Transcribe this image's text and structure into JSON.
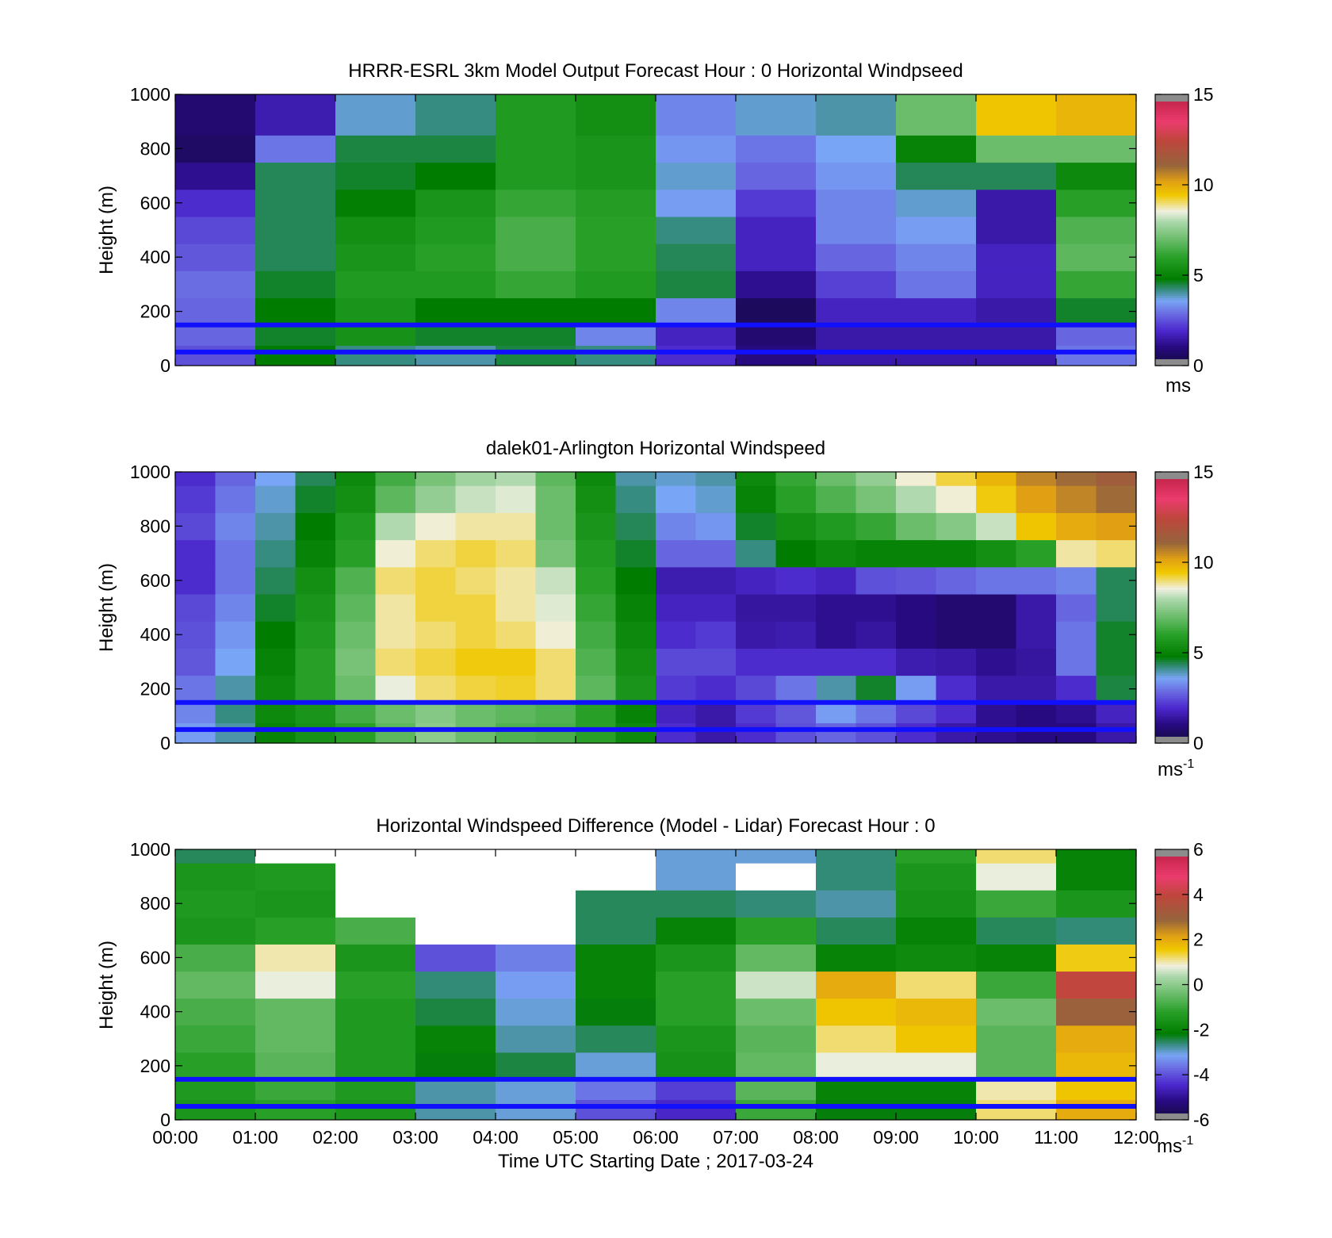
{
  "chart_data": [
    {
      "type": "heatmap",
      "title": "HRRR-ESRL 3km Model Output   Forecast Hour : 0 Horizontal Windpseed",
      "ylabel": "Height (m)",
      "ylim": [
        0,
        1000
      ],
      "y_ticks": [
        "0",
        "200",
        "400",
        "600",
        "800",
        "1000"
      ],
      "x_ticks": [],
      "xlim_hours": [
        0,
        12
      ],
      "colorbar": {
        "min": 0,
        "max": 15,
        "ticks": [
          "0",
          "5",
          "10",
          "15"
        ],
        "unit": "ms",
        "unit_sup": ""
      },
      "reference_heights": [
        150,
        50
      ],
      "time_hours": [
        0,
        1,
        2,
        3,
        4,
        5,
        6,
        7,
        8,
        9,
        10,
        11
      ],
      "heights_m": [
        50,
        100,
        200,
        300,
        400,
        500,
        600,
        700,
        800,
        900,
        1000
      ],
      "values": [
        [
          2.5,
          4.8,
          4.2,
          4.0,
          4.5,
          4.2,
          2.0,
          1.0,
          1.5,
          1.5,
          1.5,
          3.0
        ],
        [
          2.8,
          4.6,
          5.5,
          4.6,
          4.6,
          3.2,
          1.8,
          0.8,
          1.5,
          1.5,
          1.5,
          2.8
        ],
        [
          2.8,
          4.8,
          5.6,
          4.8,
          4.8,
          4.8,
          3.2,
          0.5,
          1.8,
          1.8,
          1.5,
          4.6
        ],
        [
          2.9,
          4.6,
          5.8,
          5.8,
          6.2,
          5.8,
          4.5,
          1.2,
          2.3,
          3.0,
          1.8,
          6.2
        ],
        [
          2.6,
          4.4,
          5.6,
          6.0,
          6.5,
          6.0,
          4.4,
          1.8,
          2.8,
          3.2,
          1.8,
          6.8
        ],
        [
          2.4,
          4.4,
          5.4,
          5.8,
          6.5,
          6.0,
          4.2,
          1.8,
          3.2,
          3.5,
          1.5,
          6.6
        ],
        [
          2.0,
          4.4,
          4.9,
          5.6,
          6.2,
          5.9,
          3.5,
          2.2,
          3.2,
          3.8,
          1.5,
          6.0
        ],
        [
          1.2,
          4.4,
          4.6,
          4.8,
          5.8,
          5.6,
          3.8,
          2.8,
          3.4,
          4.4,
          4.4,
          5.2
        ],
        [
          0.6,
          3.0,
          4.5,
          4.5,
          5.8,
          5.6,
          3.4,
          3.0,
          3.6,
          5.0,
          7.0,
          7.0
        ],
        [
          0.8,
          1.6,
          3.8,
          4.2,
          5.8,
          5.4,
          3.2,
          3.8,
          4.0,
          7.0,
          9.5,
          9.8
        ],
        [
          0.8,
          1.6,
          3.8,
          4.2,
          5.8,
          5.4,
          3.2,
          3.8,
          4.0,
          7.0,
          9.5,
          9.8
        ]
      ]
    },
    {
      "type": "heatmap",
      "title": "dalek01-Arlington  Horizontal Windspeed",
      "ylabel": "Height (m)",
      "ylim": [
        0,
        1000
      ],
      "y_ticks": [
        "0",
        "200",
        "400",
        "600",
        "800",
        "1000"
      ],
      "x_ticks": [],
      "xlim_hours": [
        0,
        12
      ],
      "colorbar": {
        "min": 0,
        "max": 15,
        "ticks": [
          "0",
          "5",
          "10",
          "15"
        ],
        "unit": "ms",
        "unit_sup": "-1"
      },
      "reference_heights": [
        150,
        50
      ],
      "time_hours": [
        0,
        0.5,
        1,
        1.5,
        2,
        2.5,
        3,
        3.5,
        4,
        4.5,
        5,
        5.5,
        6,
        6.5,
        7,
        7.5,
        8,
        8.5,
        9,
        9.5,
        10,
        10.5,
        11,
        11.5
      ],
      "heights_m": [
        50,
        100,
        200,
        300,
        400,
        500,
        600,
        700,
        800,
        900,
        1000
      ],
      "values": [
        [
          3.5,
          4.0,
          5.0,
          5.5,
          6.0,
          6.8,
          7.5,
          7.0,
          6.6,
          6.5,
          6.0,
          5.2,
          2.0,
          1.5,
          2.0,
          2.5,
          2.8,
          2.5,
          2.0,
          1.5,
          1.2,
          1.0,
          1.0,
          1.5
        ],
        [
          3.2,
          4.2,
          5.2,
          5.6,
          6.4,
          7.0,
          7.4,
          7.0,
          6.8,
          6.6,
          6.0,
          5.0,
          1.8,
          1.5,
          2.2,
          2.6,
          3.5,
          3.0,
          2.4,
          2.0,
          1.2,
          1.0,
          1.2,
          1.8
        ],
        [
          3.0,
          4.0,
          5.2,
          6.0,
          7.0,
          8.5,
          9.0,
          9.2,
          9.3,
          9.0,
          6.8,
          5.6,
          2.2,
          2.0,
          2.4,
          3.0,
          4.0,
          4.6,
          3.5,
          2.0,
          1.5,
          1.5,
          2.0,
          4.5
        ],
        [
          2.6,
          3.6,
          5.0,
          6.0,
          7.2,
          9.0,
          9.2,
          9.4,
          9.4,
          9.0,
          6.6,
          5.4,
          2.4,
          2.4,
          2.0,
          2.0,
          2.0,
          2.0,
          1.6,
          1.5,
          1.2,
          1.4,
          3.0,
          4.6
        ],
        [
          2.5,
          3.4,
          4.8,
          5.8,
          7.0,
          8.8,
          9.0,
          9.2,
          9.0,
          8.6,
          6.4,
          5.2,
          2.0,
          2.2,
          1.5,
          1.6,
          1.2,
          1.4,
          1.0,
          0.8,
          0.8,
          1.5,
          3.0,
          4.6
        ],
        [
          2.4,
          3.2,
          4.6,
          5.6,
          6.8,
          8.8,
          9.2,
          9.2,
          8.8,
          8.4,
          6.2,
          5.0,
          1.8,
          1.8,
          1.4,
          1.4,
          1.2,
          1.2,
          1.0,
          0.8,
          0.8,
          1.5,
          2.8,
          4.4
        ],
        [
          2.0,
          3.0,
          4.4,
          5.4,
          6.6,
          9.0,
          9.2,
          9.0,
          8.8,
          8.2,
          6.0,
          4.8,
          1.6,
          1.6,
          1.8,
          2.0,
          1.8,
          2.5,
          2.6,
          2.8,
          3.0,
          3.0,
          3.2,
          4.4
        ],
        [
          2.0,
          3.0,
          4.2,
          5.0,
          6.0,
          8.6,
          9.0,
          9.2,
          9.0,
          7.2,
          5.8,
          4.6,
          2.8,
          2.8,
          4.2,
          4.8,
          5.2,
          5.0,
          5.0,
          5.0,
          5.4,
          6.0,
          8.8,
          9.0
        ],
        [
          2.4,
          3.2,
          4.0,
          4.8,
          5.8,
          8.0,
          8.6,
          8.8,
          8.8,
          7.0,
          5.6,
          4.4,
          3.2,
          3.4,
          4.6,
          5.4,
          5.8,
          6.2,
          7.0,
          7.4,
          8.2,
          9.5,
          10.0,
          10.2
        ],
        [
          2.2,
          3.0,
          3.8,
          4.6,
          5.4,
          6.8,
          7.6,
          8.2,
          8.4,
          7.0,
          5.4,
          4.2,
          3.6,
          3.8,
          5.0,
          6.0,
          6.6,
          7.2,
          8.0,
          8.6,
          9.4,
          10.2,
          10.6,
          11.0
        ],
        [
          2.0,
          2.8,
          3.6,
          4.4,
          5.2,
          6.4,
          7.2,
          7.8,
          8.0,
          6.8,
          5.2,
          4.0,
          3.8,
          4.0,
          5.2,
          6.2,
          7.0,
          7.6,
          8.6,
          9.2,
          9.8,
          10.6,
          11.0,
          11.4
        ]
      ]
    },
    {
      "type": "heatmap",
      "title": "Horizontal Windspeed Difference (Model - Lidar) Forecast Hour : 0",
      "xlabel": "Time UTC  Starting Date ; 2017-03-24",
      "ylabel": "Height (m)",
      "ylim": [
        0,
        1000
      ],
      "y_ticks": [
        "0",
        "200",
        "400",
        "600",
        "800",
        "1000"
      ],
      "x_ticks": [
        "00:00",
        "01:00",
        "02:00",
        "03:00",
        "04:00",
        "05:00",
        "06:00",
        "07:00",
        "08:00",
        "09:00",
        "10:00",
        "11:00",
        "12:00"
      ],
      "xlim_hours": [
        0,
        12
      ],
      "colorbar": {
        "min": -6,
        "max": 6,
        "ticks": [
          "-6",
          "-4",
          "-2",
          "0",
          "2",
          "4",
          "6"
        ],
        "unit": "ms",
        "unit_sup": "-1"
      },
      "reference_heights": [
        150,
        50
      ],
      "time_hours": [
        0,
        1,
        2,
        3,
        4,
        5,
        6,
        7,
        8,
        9,
        10,
        11
      ],
      "heights_m": [
        50,
        100,
        200,
        300,
        400,
        500,
        600,
        700,
        800,
        900,
        1000
      ],
      "values": [
        [
          -1.5,
          -1.2,
          -1.5,
          -2.8,
          -3.0,
          -4.0,
          -4.5,
          -1.0,
          -2.2,
          -2.2,
          1.2,
          2.0
        ],
        [
          -1.4,
          -1.0,
          -1.4,
          -2.8,
          -3.0,
          -3.6,
          -4.2,
          -0.6,
          -2.0,
          -2.0,
          1.0,
          1.6
        ],
        [
          -1.2,
          -0.6,
          -1.4,
          -2.2,
          -2.4,
          -3.0,
          -1.6,
          -0.5,
          0.8,
          0.8,
          -0.6,
          1.8
        ],
        [
          -1.0,
          -0.5,
          -1.4,
          -2.0,
          -2.8,
          -2.5,
          -1.5,
          -0.6,
          1.2,
          1.6,
          -0.6,
          2.0
        ],
        [
          -0.8,
          -0.5,
          -1.4,
          -2.4,
          -3.0,
          -2.2,
          -1.2,
          -0.4,
          1.6,
          1.8,
          -0.4,
          3.0
        ],
        [
          -0.5,
          0.8,
          -1.2,
          -2.6,
          -3.2,
          -2.0,
          -1.2,
          0.6,
          2.0,
          1.2,
          -1.0,
          4.0
        ],
        [
          -0.8,
          1.0,
          -1.5,
          -4.0,
          -3.5,
          -2.0,
          -1.5,
          -0.5,
          -2.0,
          -1.8,
          -2.0,
          1.5
        ],
        [
          -1.5,
          -1.2,
          -0.8,
          null,
          null,
          -2.5,
          -2.0,
          -1.2,
          -2.5,
          -2.0,
          -2.5,
          -2.6
        ],
        [
          -1.4,
          -1.5,
          null,
          null,
          null,
          -2.5,
          -2.5,
          -2.6,
          -2.8,
          -1.6,
          -1.0,
          -1.5
        ],
        [
          -1.5,
          -1.4,
          null,
          null,
          null,
          null,
          -3.0,
          null,
          -2.6,
          -1.5,
          0.8,
          -2.0
        ],
        [
          -2.5,
          null,
          null,
          null,
          null,
          null,
          -3.0,
          -3.0,
          -2.6,
          -1.2,
          1.2,
          -2.0
        ]
      ]
    }
  ]
}
